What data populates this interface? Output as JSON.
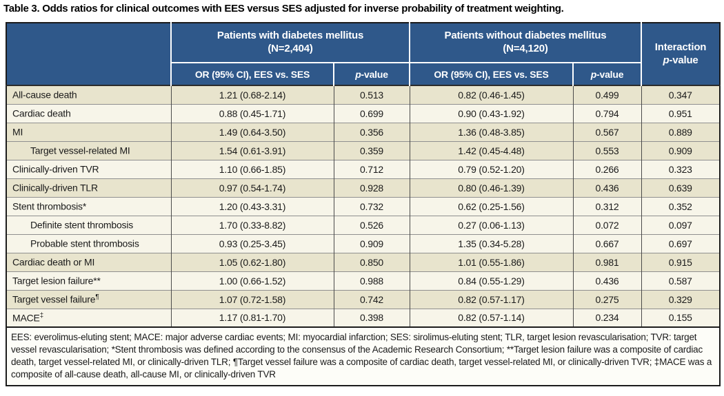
{
  "title": "Table 3. Odds ratios for clinical outcomes with EES versus SES adjusted for inverse probability of treatment weighting.",
  "colors": {
    "header_blue": "#2F588A",
    "row_beige": "#E8E4CD",
    "row_cream": "#F7F5E9"
  },
  "header": {
    "group1": {
      "label": "Patients with diabetes mellitus",
      "n": "(N=2,404)"
    },
    "group2": {
      "label": "Patients without diabetes mellitus",
      "n": "(N=4,120)"
    },
    "or_label": "OR (95% CI), EES vs. SES",
    "interaction_label": "Interaction",
    "p_italic": "p",
    "p_suffix": "-value"
  },
  "rows": [
    {
      "label": "All-cause death",
      "sup": "",
      "indent": false,
      "dm_or": "1.21 (0.68-2.14)",
      "dm_p": "0.513",
      "nodm_or": "0.82 (0.46-1.45)",
      "nodm_p": "0.499",
      "interaction_p": "0.347"
    },
    {
      "label": "Cardiac death",
      "sup": "",
      "indent": false,
      "dm_or": "0.88 (0.45-1.71)",
      "dm_p": "0.699",
      "nodm_or": "0.90 (0.43-1.92)",
      "nodm_p": "0.794",
      "interaction_p": "0.951"
    },
    {
      "label": "MI",
      "sup": "",
      "indent": false,
      "dm_or": "1.49 (0.64-3.50)",
      "dm_p": "0.356",
      "nodm_or": "1.36 (0.48-3.85)",
      "nodm_p": "0.567",
      "interaction_p": "0.889"
    },
    {
      "label": "Target vessel-related MI",
      "sup": "",
      "indent": true,
      "dm_or": "1.54 (0.61-3.91)",
      "dm_p": "0.359",
      "nodm_or": "1.42 (0.45-4.48)",
      "nodm_p": "0.553",
      "interaction_p": "0.909"
    },
    {
      "label": "Clinically-driven TVR",
      "sup": "",
      "indent": false,
      "dm_or": "1.10 (0.66-1.85)",
      "dm_p": "0.712",
      "nodm_or": "0.79 (0.52-1.20)",
      "nodm_p": "0.266",
      "interaction_p": "0.323"
    },
    {
      "label": "Clinically-driven TLR",
      "sup": "",
      "indent": false,
      "dm_or": "0.97 (0.54-1.74)",
      "dm_p": "0.928",
      "nodm_or": "0.80 (0.46-1.39)",
      "nodm_p": "0.436",
      "interaction_p": "0.639"
    },
    {
      "label": "Stent thrombosis*",
      "sup": "",
      "indent": false,
      "dm_or": "1.20 (0.43-3.31)",
      "dm_p": "0.732",
      "nodm_or": "0.62 (0.25-1.56)",
      "nodm_p": "0.312",
      "interaction_p": "0.352"
    },
    {
      "label": "Definite stent thrombosis",
      "sup": "",
      "indent": true,
      "dm_or": "1.70 (0.33-8.82)",
      "dm_p": "0.526",
      "nodm_or": "0.27 (0.06-1.13)",
      "nodm_p": "0.072",
      "interaction_p": "0.097"
    },
    {
      "label": "Probable stent thrombosis",
      "sup": "",
      "indent": true,
      "dm_or": "0.93 (0.25-3.45)",
      "dm_p": "0.909",
      "nodm_or": "1.35 (0.34-5.28)",
      "nodm_p": "0.667",
      "interaction_p": "0.697"
    },
    {
      "label": "Cardiac death or MI",
      "sup": "",
      "indent": false,
      "dm_or": "1.05 (0.62-1.80)",
      "dm_p": "0.850",
      "nodm_or": "1.01 (0.55-1.86)",
      "nodm_p": "0.981",
      "interaction_p": "0.915"
    },
    {
      "label": "Target lesion failure**",
      "sup": "",
      "indent": false,
      "dm_or": "1.00 (0.66-1.52)",
      "dm_p": "0.988",
      "nodm_or": "0.84 (0.55-1.29)",
      "nodm_p": "0.436",
      "interaction_p": "0.587"
    },
    {
      "label": "Target vessel failure",
      "sup": "¶",
      "indent": false,
      "dm_or": "1.07 (0.72-1.58)",
      "dm_p": "0.742",
      "nodm_or": "0.82 (0.57-1.17)",
      "nodm_p": "0.275",
      "interaction_p": "0.329"
    },
    {
      "label": "MACE",
      "sup": "‡",
      "indent": false,
      "dm_or": "1.17 (0.81-1.70)",
      "dm_p": "0.398",
      "nodm_or": "0.82 (0.57-1.14)",
      "nodm_p": "0.234",
      "interaction_p": "0.155"
    }
  ],
  "footnote": "EES: everolimus-eluting stent; MACE: major adverse cardiac events; MI: myocardial infarction; SES: sirolimus-eluting stent; TLR, target lesion revascularisation; TVR: target vessel revascularisation; *Stent thrombosis was defined according to the consensus of the Academic Research Consortium; **Target lesion failure was a composite of cardiac death, target vessel-related MI, or clinically-driven TLR; ¶Target vessel failure was a composite of cardiac death, target vessel-related MI, or clinically-driven TVR; ‡MACE was a composite of all-cause death, all-cause MI, or clinically-driven TVR"
}
